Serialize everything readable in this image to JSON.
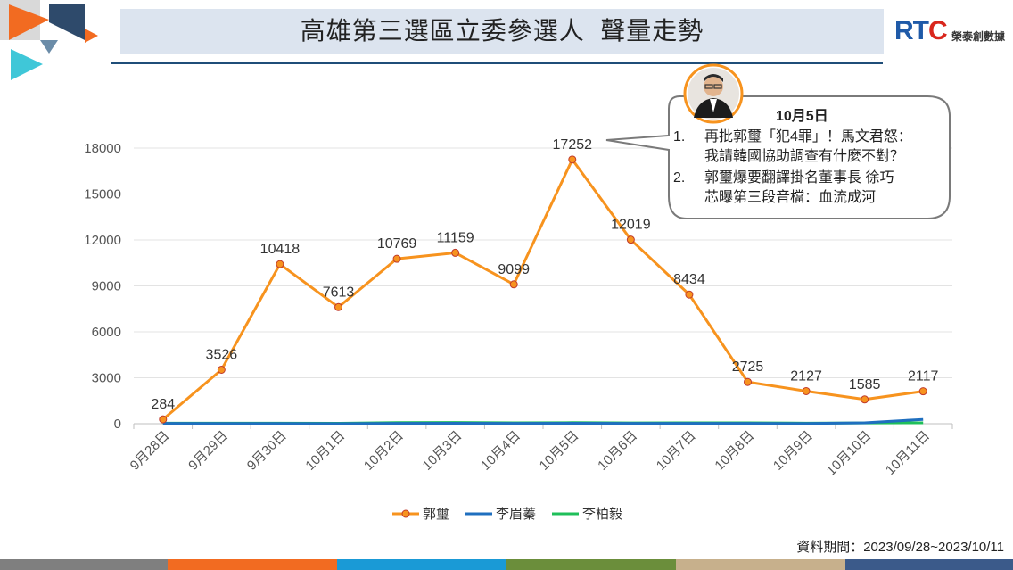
{
  "title": "高雄第三選區立委參選人  聲量走勢",
  "logo": {
    "rt": "RT",
    "c": "C",
    "sub": "榮泰創數據"
  },
  "source": "資料期間：2023/09/28~2023/10/11",
  "callout": {
    "title": "10月5日",
    "item1_num": "1.",
    "item1_line1": "再批郭璽「犯4罪」！馬文君怒：",
    "item1_line2": "我請韓國協助調查有什麼不對？",
    "item2_num": "2.",
    "item2_line1": "郭璽爆要翻譯掛名董事長 徐巧",
    "item2_line2": "芯曝第三段音檔：血流成河"
  },
  "colors": {
    "series1": "#f7931e",
    "series2": "#1f6fbf",
    "series3": "#1fbf5a",
    "band": [
      "#7f7f7f",
      "#f26b21",
      "#1a9ad6",
      "#6b8e3b",
      "#c7b08c",
      "#3b5a8a"
    ]
  },
  "chart_data": {
    "type": "line",
    "categories": [
      "9月28日",
      "9月29日",
      "9月30日",
      "10月1日",
      "10月2日",
      "10月3日",
      "10月4日",
      "10月5日",
      "10月6日",
      "10月7日",
      "10月8日",
      "10月9日",
      "10月10日",
      "10月11日"
    ],
    "series": [
      {
        "name": "郭璽",
        "values": [
          284,
          3526,
          10418,
          7613,
          10769,
          11159,
          9099,
          17252,
          12019,
          8434,
          2725,
          2127,
          1585,
          2117
        ],
        "labeled": true
      },
      {
        "name": "李眉蓁",
        "values": [
          20,
          15,
          15,
          10,
          20,
          30,
          25,
          30,
          20,
          25,
          20,
          15,
          60,
          280
        ],
        "labeled": false
      },
      {
        "name": "李柏毅",
        "values": [
          40,
          35,
          35,
          30,
          70,
          80,
          60,
          70,
          50,
          60,
          60,
          40,
          50,
          60
        ],
        "labeled": false
      }
    ],
    "yticks": [
      "0",
      "3000",
      "6000",
      "9000",
      "12000",
      "15000",
      "18000"
    ],
    "ylim": [
      0,
      18000
    ],
    "grid": true,
    "legend": "bottom"
  }
}
